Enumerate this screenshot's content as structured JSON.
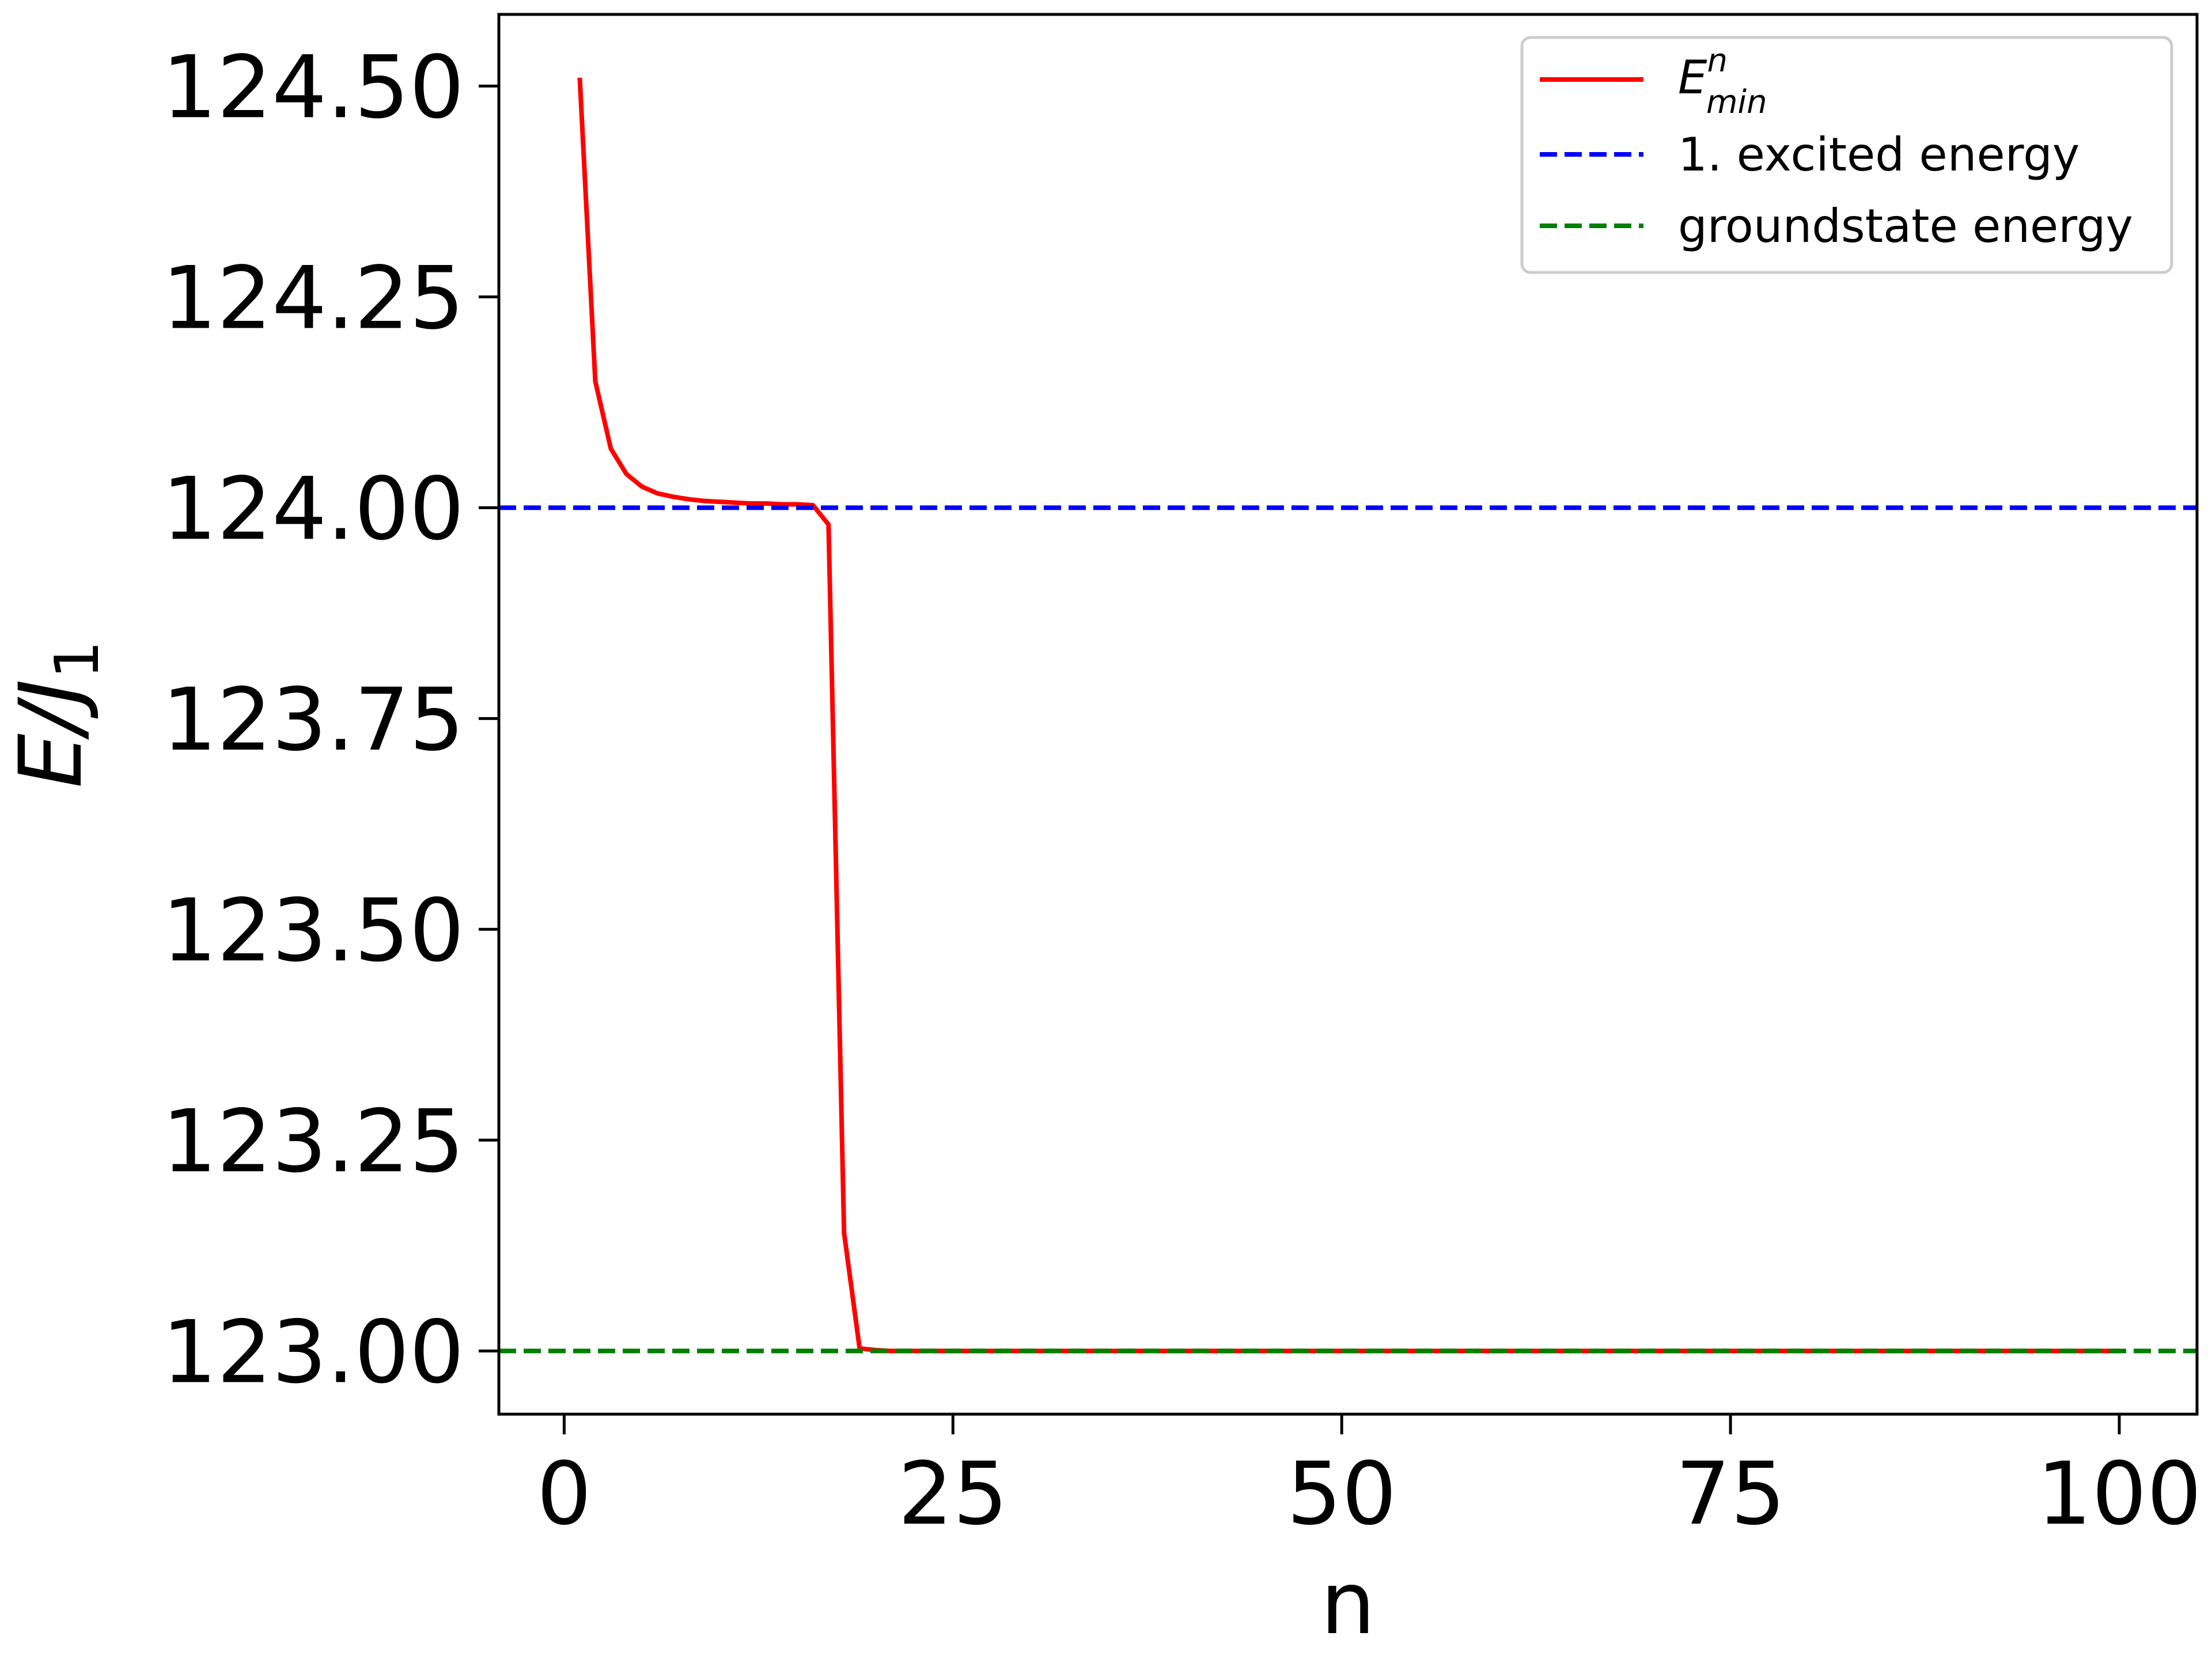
{
  "chart_data": {
    "type": "line",
    "xlabel": "n",
    "ylabel": {
      "main": "E/J",
      "subscript": "1"
    },
    "xlim": [
      -4.2,
      105
    ],
    "ylim": [
      122.925,
      124.585
    ],
    "xticks": [
      0,
      25,
      50,
      75,
      100
    ],
    "xtick_labels": [
      "0",
      "25",
      "50",
      "75",
      "100"
    ],
    "yticks": [
      123.0,
      123.25,
      123.5,
      123.75,
      124.0,
      124.25,
      124.5
    ],
    "ytick_labels": [
      "123.00",
      "123.25",
      "123.50",
      "123.75",
      "124.00",
      "124.25",
      "124.50"
    ],
    "grid": false,
    "legend_position": "upper right",
    "legend": [
      {
        "label_main": "E",
        "label_sup": "n",
        "label_sub": "min",
        "color": "#ff0000",
        "style": "solid"
      },
      {
        "label": "1. excited energy",
        "color": "#0000ff",
        "style": "dashed"
      },
      {
        "label": "groundstate energy",
        "color": "#008000",
        "style": "dashed"
      }
    ],
    "series": [
      {
        "color": "#ff0000",
        "style": "solid",
        "x": [
          1,
          2,
          3,
          4,
          5,
          6,
          7,
          8,
          9,
          10,
          11,
          12,
          13,
          14,
          15,
          16,
          17,
          18,
          19,
          20,
          21,
          22,
          23,
          24,
          25,
          30,
          35,
          40,
          45,
          50,
          55,
          60,
          65,
          70,
          75,
          80,
          85,
          90,
          95,
          100
        ],
        "y": [
          124.51,
          124.15,
          124.07,
          124.04,
          124.025,
          124.017,
          124.013,
          124.01,
          124.008,
          124.007,
          124.006,
          124.005,
          124.005,
          124.004,
          124.004,
          124.003,
          123.98,
          123.14,
          123.003,
          123.001,
          123.0,
          123.0,
          123.0,
          123.0,
          123.0,
          123.0,
          123.0,
          123.0,
          123.0,
          123.0,
          123.0,
          123.0,
          123.0,
          123.0,
          123.0,
          123.0,
          123.0,
          123.0,
          123.0,
          123.0
        ]
      },
      {
        "color": "#0000ff",
        "style": "dashed",
        "hline": 124.0
      },
      {
        "color": "#008000",
        "style": "dashed",
        "hline": 123.0
      }
    ]
  }
}
